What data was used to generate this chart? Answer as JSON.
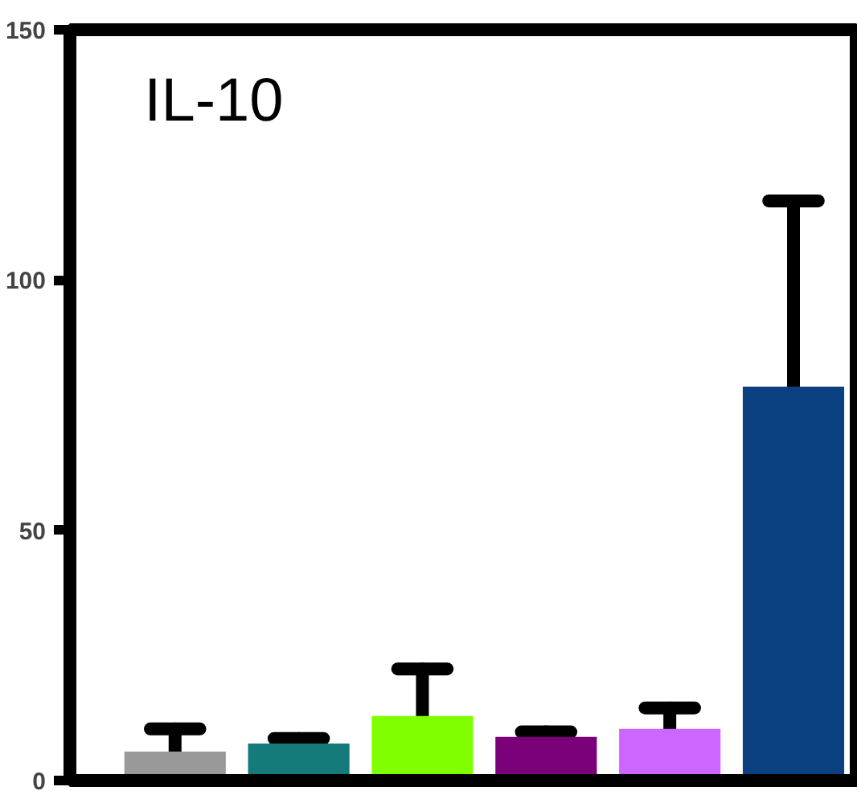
{
  "chart_data": {
    "type": "bar",
    "title": "IL-10",
    "categories": [
      null,
      null,
      null,
      null,
      null,
      null
    ],
    "values": [
      5.8,
      7.4,
      12.9,
      8.7,
      10.3,
      78.7
    ],
    "colors": [
      "#999999",
      "#147a7a",
      "#80ff00",
      "#7a007a",
      "#cc66ff",
      "#0a4080"
    ],
    "errors": [
      4.5,
      1.0,
      9.4,
      1.0,
      4.2,
      37.1
    ],
    "ylim": [
      0,
      150
    ],
    "yticks": [
      0,
      50,
      100,
      150
    ],
    "grid": false
  }
}
